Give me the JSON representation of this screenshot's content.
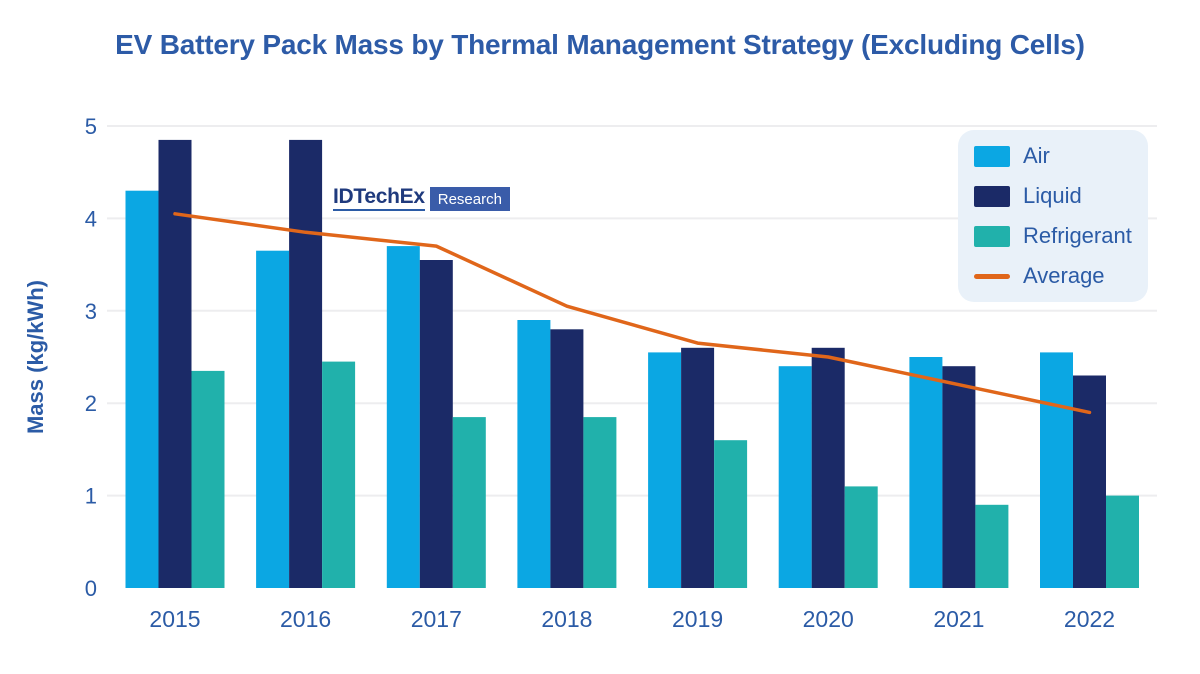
{
  "title": {
    "text": "EV Battery Pack Mass by Thermal Management Strategy (Excluding Cells)"
  },
  "watermark": {
    "brand": "IDTechEx",
    "tag": "Research"
  },
  "ui": {
    "background": "#ffffff",
    "title_color": "#2d5ba7",
    "axis_text": "#2b5ba6",
    "grid": "#ededef",
    "legend_bg": "#e9f1f9",
    "legend_text": "#2b5ba6",
    "brand_text": "#1f3a7d",
    "brand_underline": "#2b5ba6",
    "tag_bg": "#3a5ca9",
    "tag_text": "#ffffff"
  },
  "chart_data": {
    "type": "bar",
    "title": "EV Battery Pack Mass by Thermal Management Strategy (Excluding Cells)",
    "xlabel": "",
    "ylabel": "Mass (kg/kWh)",
    "ylim": [
      0,
      5
    ],
    "yticks": [
      0,
      1,
      2,
      3,
      4,
      5
    ],
    "grid": "horizontal-light",
    "legend_position": "top-right",
    "categories": [
      "2015",
      "2016",
      "2017",
      "2018",
      "2019",
      "2020",
      "2021",
      "2022"
    ],
    "series": [
      {
        "name": "Air",
        "type": "bar",
        "color": "#0ba7e3",
        "values": [
          4.3,
          3.65,
          3.7,
          2.9,
          2.55,
          2.4,
          2.5,
          2.55
        ]
      },
      {
        "name": "Liquid",
        "type": "bar",
        "color": "#1b2a67",
        "values": [
          4.85,
          4.85,
          3.55,
          2.8,
          2.6,
          2.6,
          2.4,
          2.3
        ]
      },
      {
        "name": "Refrigerant",
        "type": "bar",
        "color": "#21b1ab",
        "values": [
          2.35,
          2.45,
          1.85,
          1.85,
          1.6,
          1.1,
          0.9,
          1.0
        ]
      },
      {
        "name": "Average",
        "type": "line",
        "color": "#e0661a",
        "values": [
          4.05,
          3.85,
          3.7,
          3.05,
          2.65,
          2.5,
          2.2,
          1.9
        ]
      }
    ]
  }
}
